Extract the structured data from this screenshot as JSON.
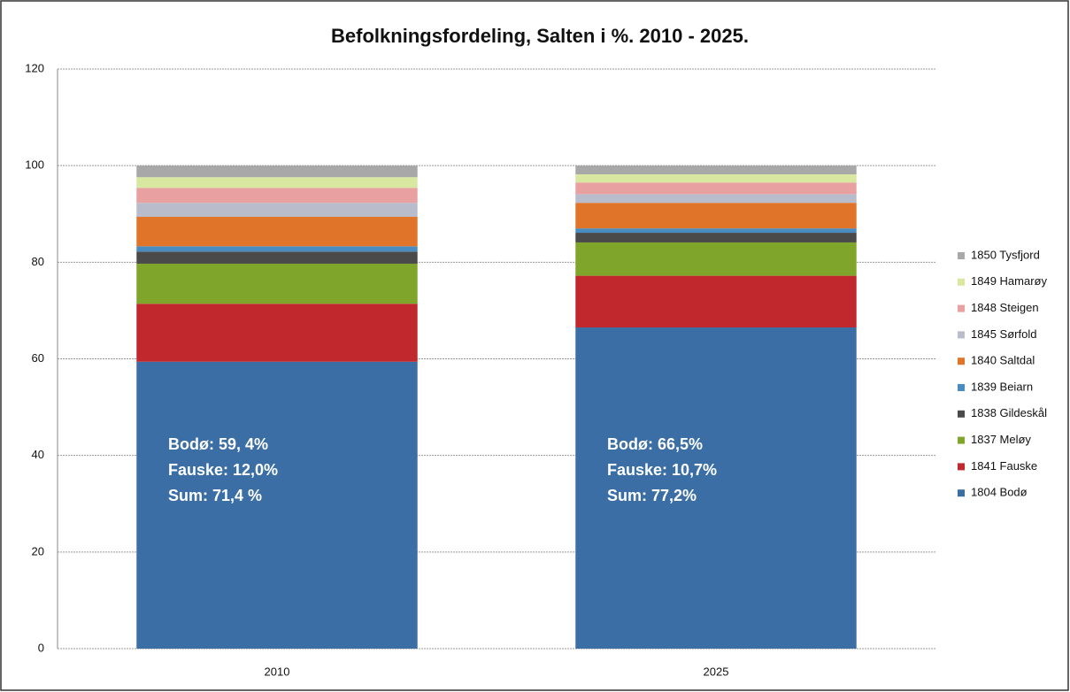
{
  "chart_data": {
    "type": "stacked_bar",
    "title": "Befolkningsfordeling, Salten i %. 2010 - 2025.",
    "categories": [
      "2010",
      "2025"
    ],
    "series": [
      {
        "name": "1804 Bodø",
        "color": "#3a6ea5",
        "values": [
          59.4,
          66.5
        ]
      },
      {
        "name": "1841 Fauske",
        "color": "#c0282d",
        "values": [
          12.0,
          10.7
        ]
      },
      {
        "name": "1837 Meløy",
        "color": "#7fa52a",
        "values": [
          8.3,
          6.9
        ]
      },
      {
        "name": "1838 Gildeskål",
        "color": "#4a4a4a",
        "values": [
          2.5,
          2.0
        ]
      },
      {
        "name": "1839 Beiarn",
        "color": "#4a8cc0",
        "values": [
          1.1,
          0.9
        ]
      },
      {
        "name": "1840 Saltdal",
        "color": "#e07428",
        "values": [
          6.1,
          5.3
        ]
      },
      {
        "name": "1845 Sørfold",
        "color": "#b8bccb",
        "values": [
          2.9,
          1.8
        ]
      },
      {
        "name": "1848 Steigen",
        "color": "#e8a0a0",
        "values": [
          3.1,
          2.4
        ]
      },
      {
        "name": "1849 Hamarøy",
        "color": "#d8e8a0",
        "values": [
          2.2,
          1.7
        ]
      },
      {
        "name": "1850 Tysfjord",
        "color": "#a8a8a8",
        "values": [
          2.4,
          1.8
        ]
      }
    ],
    "annotations": [
      [
        "Bodø: 59, 4%",
        "Fauske: 12,0%",
        "Sum: 71,4 %"
      ],
      [
        "Bodø: 66,5%",
        "Fauske: 10,7%",
        "Sum: 77,2%"
      ]
    ],
    "ylim": [
      0,
      120
    ],
    "yticks": [
      0,
      20,
      40,
      60,
      80,
      100,
      120
    ],
    "grid": true,
    "legend": "right"
  }
}
